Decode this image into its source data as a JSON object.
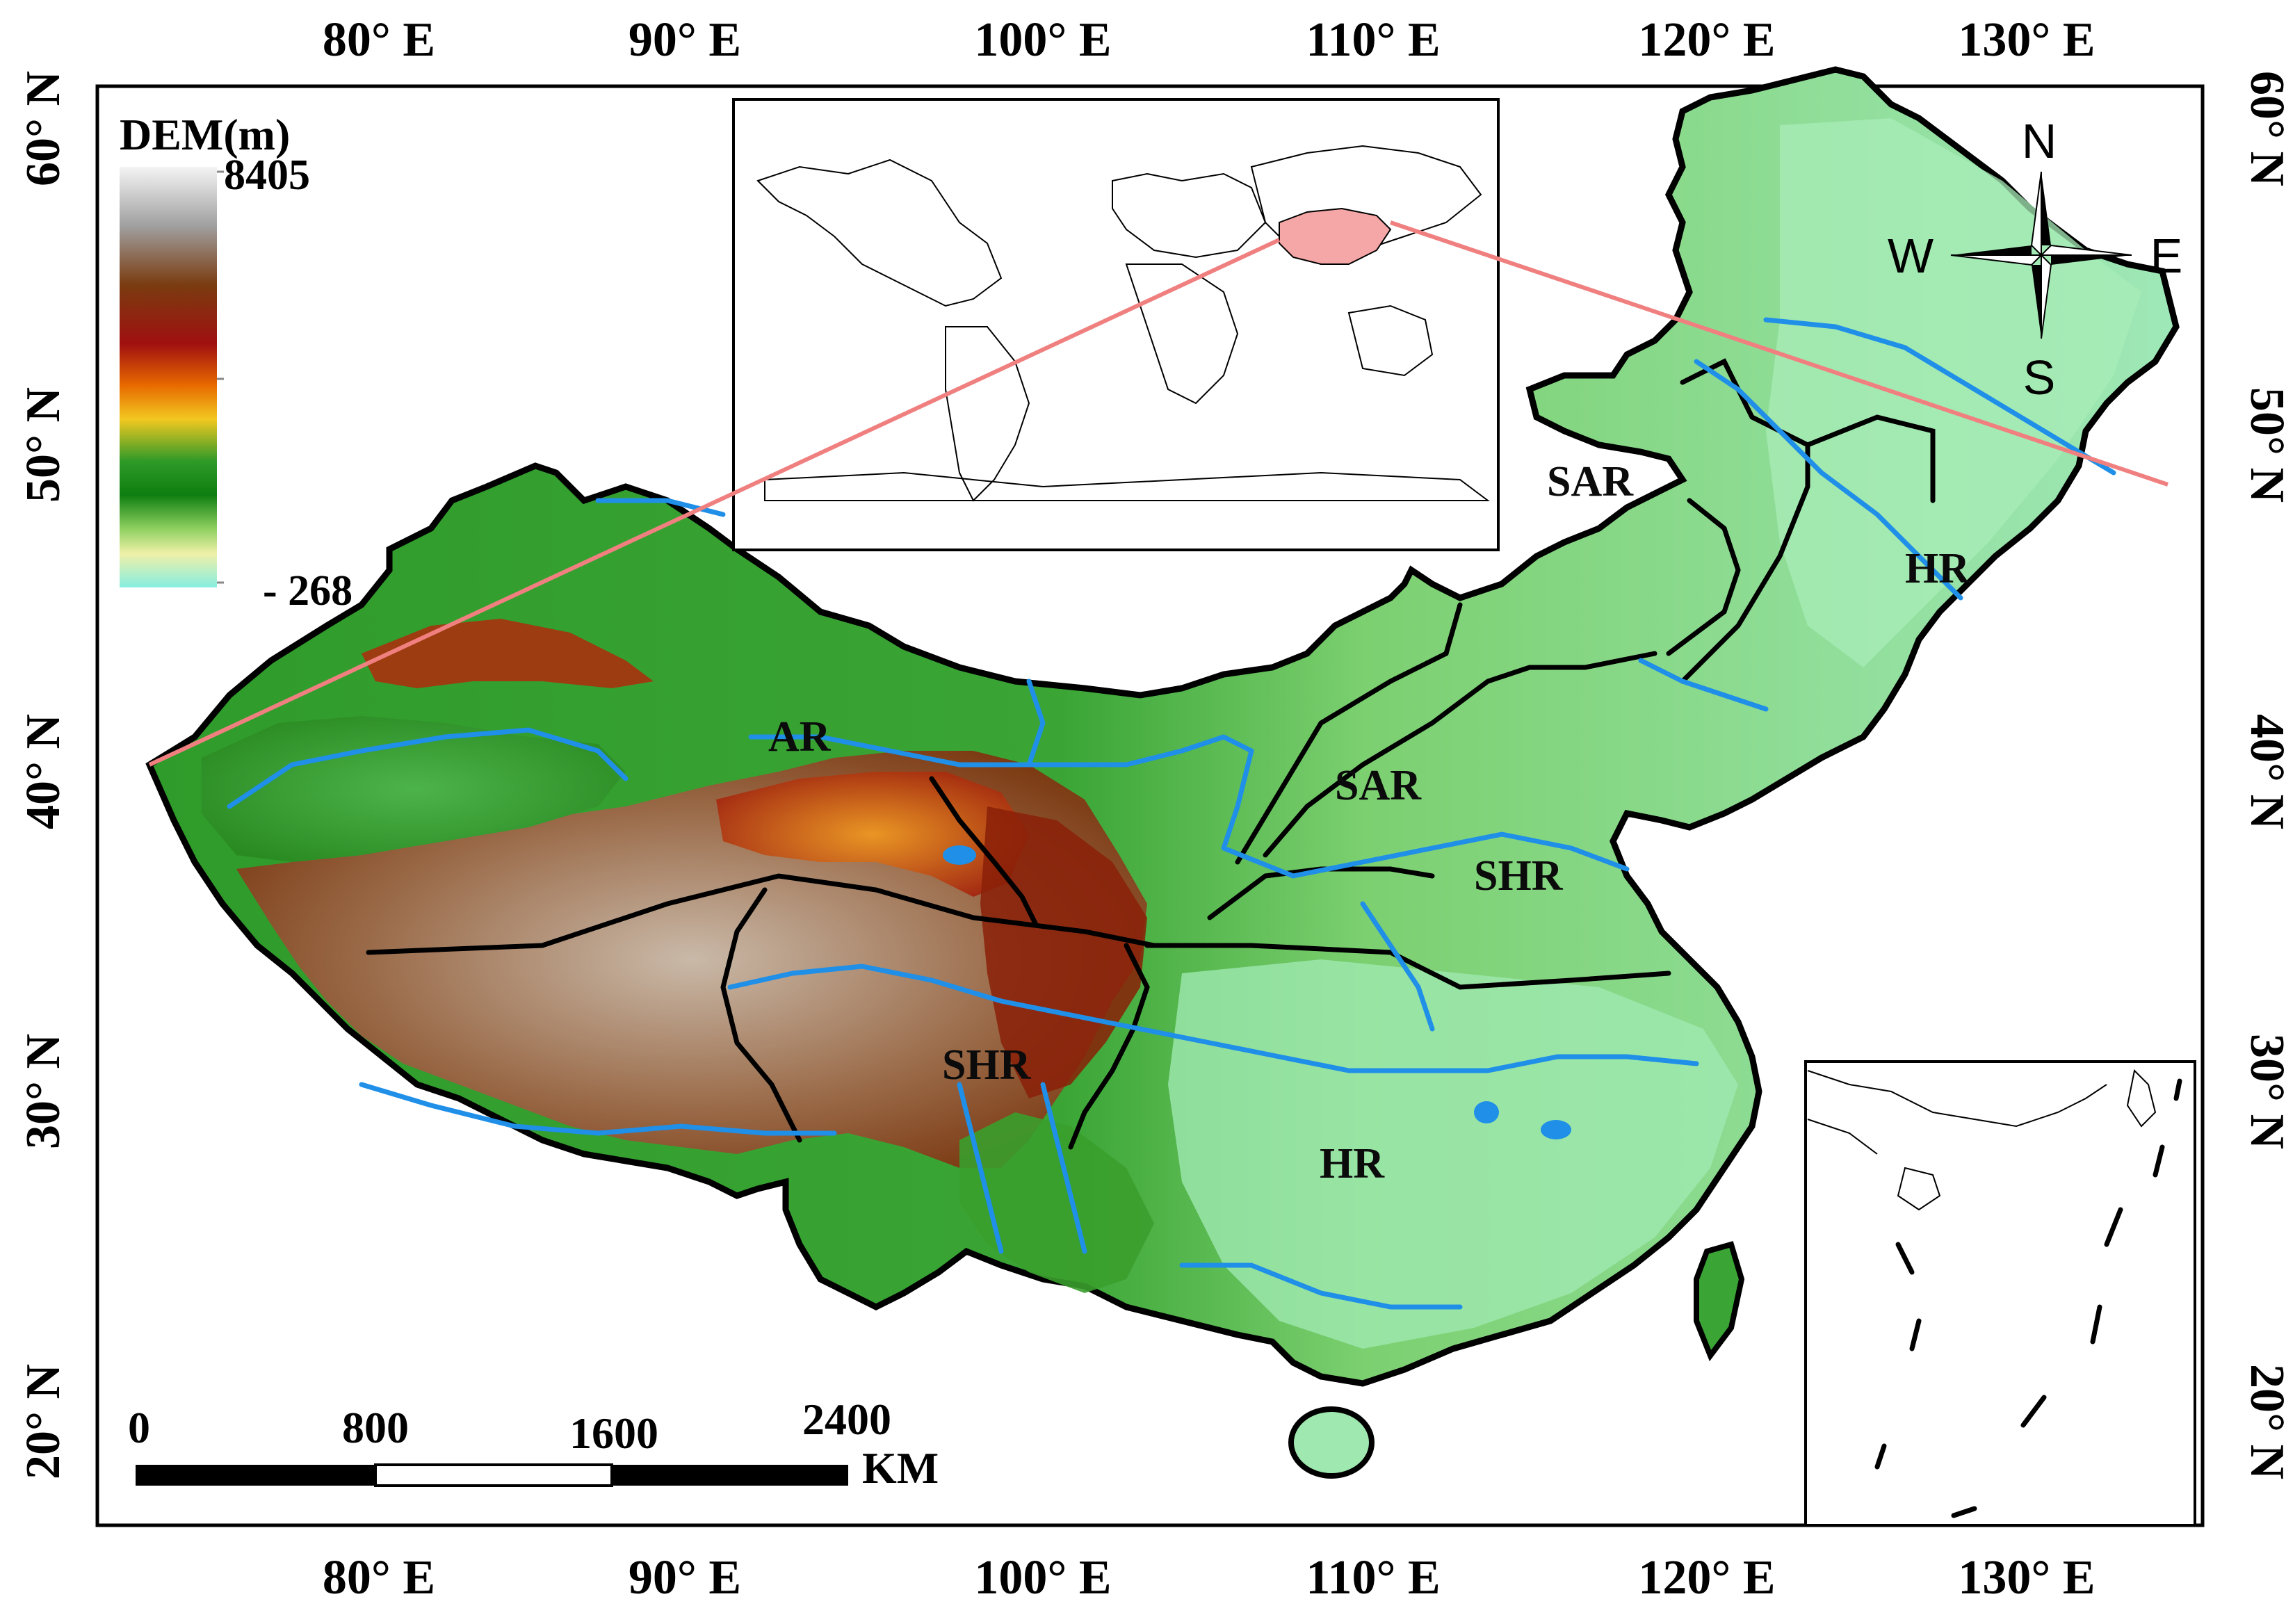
{
  "coordinates": {
    "top_longitudes": [
      "80° E",
      "90° E",
      "100° E",
      "110° E",
      "120° E",
      "130° E"
    ],
    "bottom_longitudes": [
      "80° E",
      "90° E",
      "100° E",
      "110° E",
      "120° E",
      "130° E"
    ],
    "left_latitudes": [
      "60° N",
      "50° N",
      "40° N",
      "30° N",
      "20° N"
    ],
    "right_latitudes": [
      "60° N",
      "50° N",
      "40° N",
      "30° N",
      "20° N"
    ]
  },
  "legend": {
    "title": "DEM(m)",
    "max": "8405",
    "min": "- 268",
    "colors": [
      "#f4f4f4",
      "#a0a0a0",
      "#7a3c10",
      "#a01010",
      "#e86a00",
      "#f2c820",
      "#2e9a28",
      "#0e7e10",
      "#8ed060",
      "#f0f0a8",
      "#86eee0"
    ]
  },
  "compass": {
    "n": "N",
    "s": "S",
    "e": "E",
    "w": "W"
  },
  "regions": [
    "AR",
    "SAR",
    "SAR",
    "SHR",
    "SHR",
    "HR",
    "HR"
  ],
  "scale_bar": {
    "ticks": [
      "0",
      "800",
      "1600",
      "2400"
    ],
    "unit": "KM"
  },
  "colors": {
    "frame": "#000000",
    "river": "#1f8fe8",
    "boundary": "#000000",
    "inset_highlight": "#f5a6a6",
    "inset_line": "#f08080"
  }
}
